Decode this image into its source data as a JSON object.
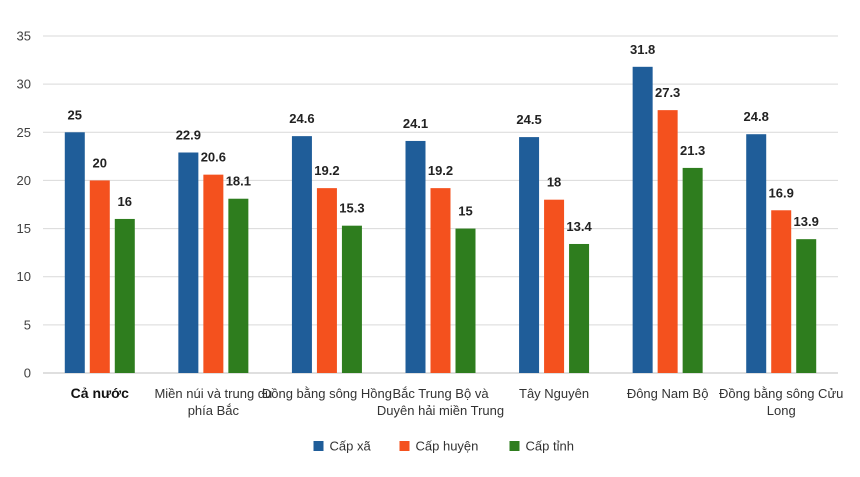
{
  "chart_data": {
    "type": "bar",
    "categories": [
      [
        "Cả nước"
      ],
      [
        "Miền núi và trung du",
        "phía Bắc"
      ],
      [
        "Đồng bằng sông Hồng"
      ],
      [
        "Bắc Trung Bộ và",
        "Duyên hải miền Trung"
      ],
      [
        "Tây Nguyên"
      ],
      [
        "Đông Nam Bộ"
      ],
      [
        "Đồng bằng sông Cửu",
        "Long"
      ]
    ],
    "series": [
      {
        "name": "Cấp xã",
        "color": "#1f5d99",
        "values": [
          25,
          22.9,
          24.6,
          24.1,
          24.5,
          31.8,
          24.8
        ]
      },
      {
        "name": "Cấp huyện",
        "color": "#f4511e",
        "values": [
          20,
          20.6,
          19.2,
          19.2,
          18,
          27.3,
          16.9
        ]
      },
      {
        "name": "Cấp tỉnh",
        "color": "#2e7d1e",
        "values": [
          16,
          18.1,
          15.3,
          15,
          13.4,
          21.3,
          13.9
        ]
      }
    ],
    "ylim": [
      0,
      35
    ],
    "yticks": [
      0,
      5,
      10,
      15,
      20,
      25,
      30,
      35
    ],
    "grid": true,
    "legend": "bottom"
  }
}
